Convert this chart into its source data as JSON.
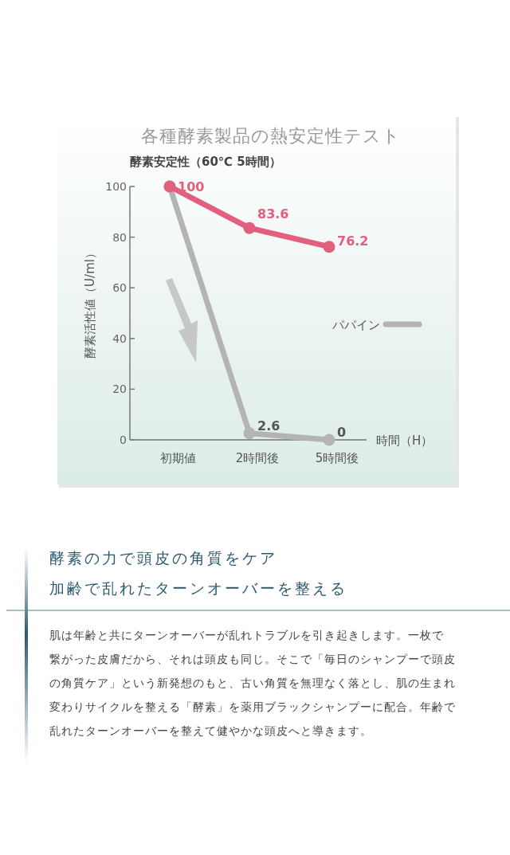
{
  "chart_data": {
    "type": "line",
    "title": "各種酵素製品の熱安定性テスト",
    "subtitle": "酵素安定性（60℃ 5時間）",
    "xlabel": "時間（H）",
    "ylabel": "酵素活性値（U/ml）",
    "categories": [
      "初期値",
      "2時間後",
      "5時間後"
    ],
    "ylim": [
      0,
      100
    ],
    "yticks": [
      0,
      20,
      40,
      60,
      80,
      100
    ],
    "marker": "circle",
    "legend": "right",
    "grid": false,
    "series": [
      {
        "color": "#e0607e",
        "values": [
          100,
          83.6,
          76.2
        ],
        "value_labels": [
          "100",
          "83.6",
          "76.2"
        ]
      },
      {
        "name": "パパイン",
        "color": "#b4b4b4",
        "values": [
          100,
          2.6,
          0
        ],
        "value_labels": [
          null,
          "2.6",
          "0"
        ]
      }
    ],
    "annotations": [
      "酵素の力で頭皮の角質をケア",
      "加齢で乱れたターンオーバーを整える",
      "肌は年齢と共にターンオーバーが乱れトラブルを引き起きします。一枚で",
      "繋がった皮膚だから、それは頭皮も同じ。そこで「毎日のシャンプーで頭皮",
      "の角質ケア」という新発想のもと、古い角質を無理なく落とし、肌の生まれ",
      "変わりサイクルを整える「酵素」を薬用ブラックシャンプーに配合。年齢で",
      "乱れたターンオーバーを整えて健やかな頭皮へと導きます。"
    ]
  }
}
